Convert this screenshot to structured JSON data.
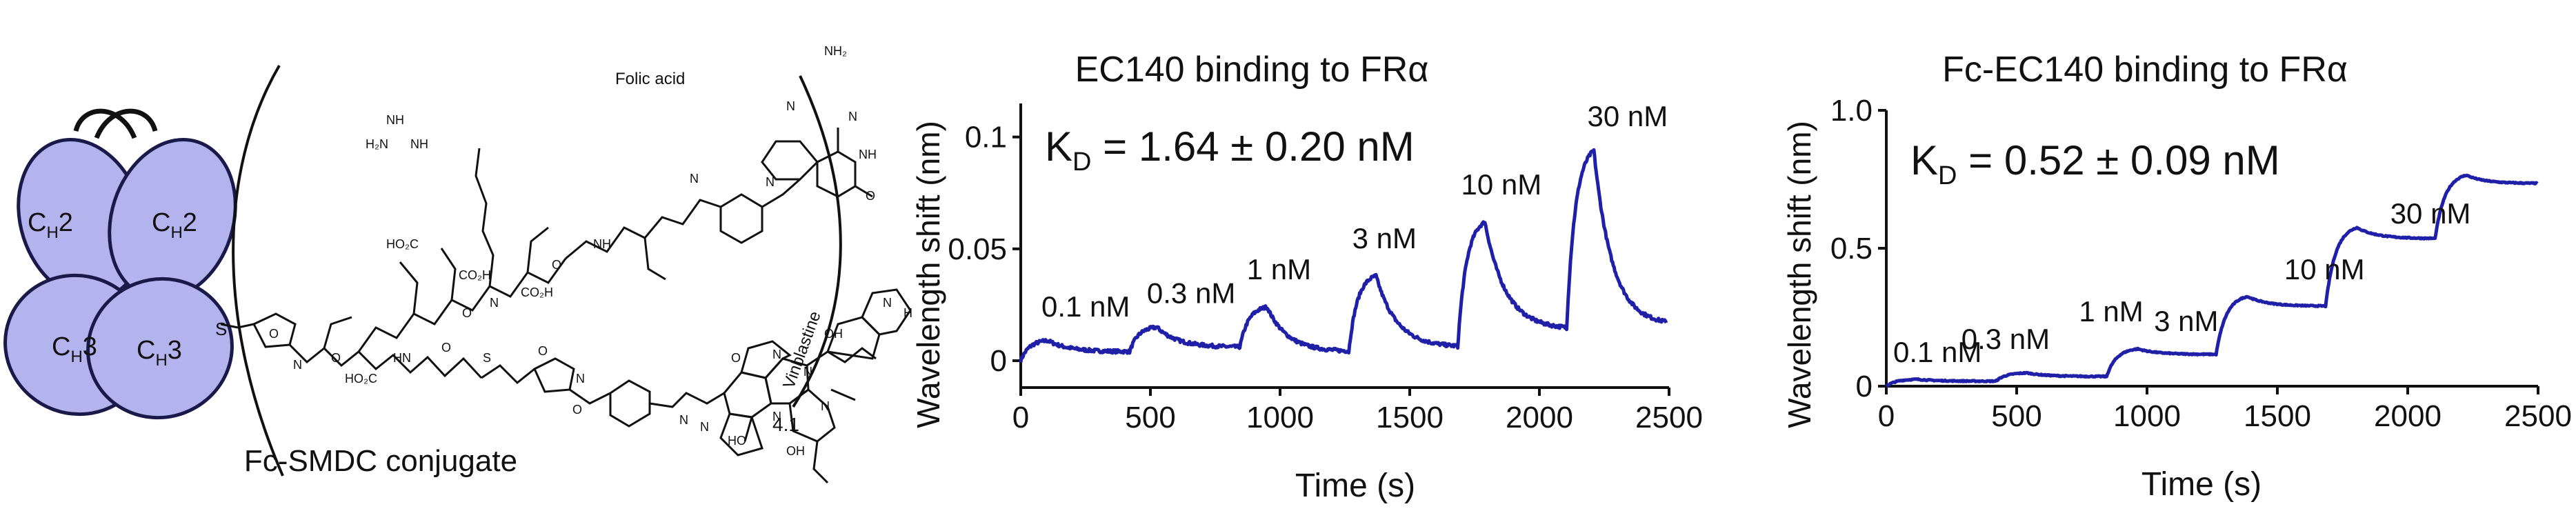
{
  "schematic": {
    "domains": [
      {
        "label": "C",
        "sub": "H",
        "tail": "2"
      },
      {
        "label": "C",
        "sub": "H",
        "tail": "2"
      },
      {
        "label": "C",
        "sub": "H",
        "tail": "3"
      },
      {
        "label": "C",
        "sub": "H",
        "tail": "3"
      }
    ],
    "linker_atom": "S",
    "folic_acid_label": "Folic acid",
    "vinblastine_label": "Vinblastine",
    "ratio_subscript": "4.1",
    "caption": "Fc-SMDC conjugate",
    "colors": {
      "domain_fill": "#b3b3ee",
      "domain_stroke": "#1a1a4a"
    }
  },
  "chart_data": [
    {
      "type": "line",
      "title": "EC140 binding to FRα",
      "xlabel": "Time (s)",
      "ylabel": "Wavelength shift (nm)",
      "xlim": [
        0,
        2500
      ],
      "ylim": [
        -0.012,
        0.115
      ],
      "xticks": [
        0,
        500,
        1000,
        1500,
        2000,
        2500
      ],
      "xtick_labels": [
        "0",
        "500",
        "1000",
        "1500",
        "2000",
        "2500"
      ],
      "yticks": [
        0,
        0.05,
        0.1
      ],
      "ytick_labels": [
        "0",
        "0.05",
        "0.1"
      ],
      "kd": {
        "prefix": "K",
        "sub": "D",
        "text": " = 1.64 ± 0.20 nM"
      },
      "color": "#1f1fa8",
      "steps": [
        {
          "label": "0.1 nM",
          "start": 0,
          "end": 105,
          "end_value": 0.009,
          "dissoc_to": 0.004
        },
        {
          "label": "0.3 nM",
          "start": 420,
          "end": 525,
          "end_value": 0.015,
          "dissoc_to": 0.006
        },
        {
          "label": "1 nM",
          "start": 845,
          "end": 950,
          "end_value": 0.024,
          "dissoc_to": 0.004
        },
        {
          "label": "3 nM",
          "start": 1265,
          "end": 1370,
          "end_value": 0.038,
          "dissoc_to": 0.006
        },
        {
          "label": "10 nM",
          "start": 1685,
          "end": 1790,
          "end_value": 0.062,
          "dissoc_to": 0.014
        },
        {
          "label": "30 nM",
          "start": 2105,
          "end": 2210,
          "end_value": 0.094,
          "dissoc_to": 0.016
        }
      ],
      "x_end": 2490
    },
    {
      "type": "line",
      "title": "Fc-EC140 binding to FRα",
      "xlabel": "Time (s)",
      "ylabel": "Wavelength shift (nm)",
      "xlim": [
        0,
        2500
      ],
      "ylim": [
        0,
        1.0
      ],
      "xticks": [
        0,
        500,
        1000,
        1500,
        2000,
        2500
      ],
      "xtick_labels": [
        "0",
        "500",
        "1000",
        "1500",
        "2000",
        "2500"
      ],
      "yticks": [
        0,
        0.5,
        1.0
      ],
      "ytick_labels": [
        "0",
        "0.5",
        "1.0"
      ],
      "kd": {
        "prefix": "K",
        "sub": "D",
        "text": " = 0.52 ± 0.09 nM"
      },
      "color": "#1f1fa8",
      "steps": [
        {
          "label": "0.1 nM",
          "start": 0,
          "end": 120,
          "end_value": 0.025,
          "dissoc_to": 0.018
        },
        {
          "label": "0.3 nM",
          "start": 420,
          "end": 540,
          "end_value": 0.048,
          "dissoc_to": 0.035
        },
        {
          "label": "1 nM",
          "start": 845,
          "end": 965,
          "end_value": 0.135,
          "dissoc_to": 0.115
        },
        {
          "label": "3 nM",
          "start": 1265,
          "end": 1385,
          "end_value": 0.325,
          "dissoc_to": 0.29
        },
        {
          "label": "10 nM",
          "start": 1685,
          "end": 1805,
          "end_value": 0.575,
          "dissoc_to": 0.535
        },
        {
          "label": "30 nM",
          "start": 2105,
          "end": 2225,
          "end_value": 0.765,
          "dissoc_to": 0.735
        }
      ],
      "x_end": 2500
    }
  ]
}
